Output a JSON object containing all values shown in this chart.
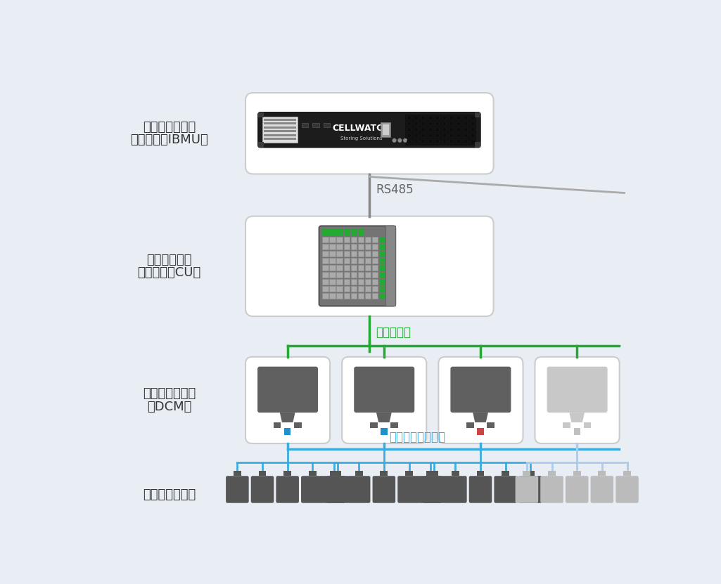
{
  "bg_color": "#e8eef4",
  "box_color": "#ffffff",
  "box_edge_color": "#cccccc",
  "green_color": "#22aa33",
  "blue_color": "#3aace0",
  "gray_color": "#777777",
  "rs485_label": "RS485",
  "fiber_label": "光ケーブル",
  "sensor_label": "センサーケーブル",
  "ibmu_label_1": "バッテリー監視",
  "ibmu_label_2": "ユニット（IBMU）",
  "cu_label_1": "コントロール",
  "cu_label_2": "ユニット（CU）",
  "dcm_label_1": "データ集積装置",
  "dcm_label_2": "（DCM）",
  "cell_label": "バッテリーセル",
  "dcm_colors": [
    "#606060",
    "#606060",
    "#606060",
    "#c8c8c8"
  ],
  "dcm_connector_colors": [
    "#2090cc",
    "#2090cc",
    "#cc4444",
    "#c0c0c0"
  ],
  "cell_colors": [
    "#555555",
    "#555555",
    "#555555",
    "#bbbbbb"
  ],
  "cell_line_colors": [
    "#3aace0",
    "#3aace0",
    "#3aace0",
    "#aaccee"
  ],
  "num_cells": 5
}
